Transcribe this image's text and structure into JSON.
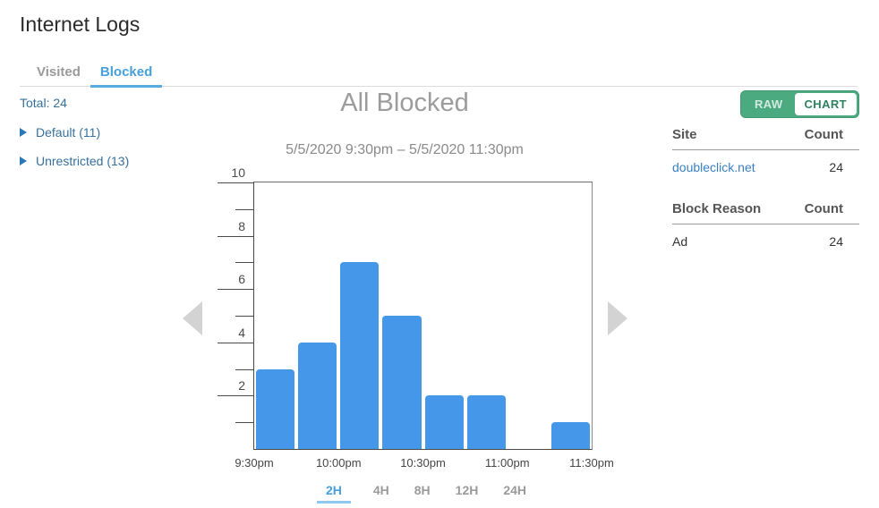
{
  "page": {
    "title": "Internet Logs"
  },
  "tabs": {
    "visited": "Visited",
    "blocked": "Blocked"
  },
  "sidebar": {
    "total": "Total: 24",
    "groups": [
      {
        "label": "Default (11)"
      },
      {
        "label": "Unrestricted (13)"
      }
    ]
  },
  "chart": {
    "title": "All Blocked",
    "subtitle": "5/5/2020 9:30pm – 5/5/2020 11:30pm"
  },
  "chart_data": {
    "type": "bar",
    "title": "All Blocked",
    "subtitle": "5/5/2020 9:30pm – 5/5/2020 11:30pm",
    "x": [
      "9:30pm",
      "9:45pm",
      "10:00pm",
      "10:15pm",
      "10:30pm",
      "10:45pm",
      "11:00pm",
      "11:15pm"
    ],
    "values": [
      3,
      4,
      7,
      5,
      2,
      2,
      0,
      1
    ],
    "total": 24,
    "x_tick_labels": [
      "9:30pm",
      "10:00pm",
      "10:30pm",
      "11:00pm",
      "11:30pm"
    ],
    "y_major_ticks": [
      10,
      8,
      6,
      4,
      2
    ],
    "ylim": [
      0,
      10
    ],
    "grid": false,
    "bar_color": "#4597ea"
  },
  "view_toggle": {
    "raw": "RAW",
    "chart": "CHART"
  },
  "tables": {
    "site": {
      "col1": "Site",
      "col2": "Count",
      "rows": [
        {
          "name": "doubleclick.net",
          "count": "24"
        }
      ]
    },
    "reason": {
      "col1": "Block Reason",
      "col2": "Count",
      "rows": [
        {
          "name": "Ad",
          "count": "24"
        }
      ]
    }
  },
  "time_ranges": {
    "items": [
      {
        "label": "2H",
        "active": true
      },
      {
        "label": "4H",
        "active": false
      },
      {
        "label": "8H",
        "active": false
      },
      {
        "label": "12H",
        "active": false
      },
      {
        "label": "24H",
        "active": false
      }
    ]
  }
}
